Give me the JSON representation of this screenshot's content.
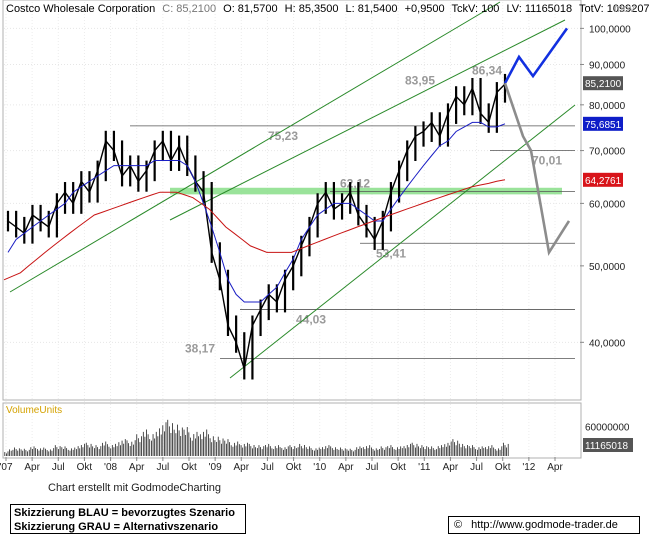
{
  "chart_data": {
    "type": "line",
    "header": {
      "name": "Costco Wholesale Corporation",
      "close": "C: 85,2100",
      "open": "O: 81,5700",
      "high": "H: 85,3500",
      "low": "L: 81,5400",
      "change": "+0,9500",
      "tckv": "TckV: 100",
      "lv": "LV: 11165018",
      "totv": "TotV: 1099207",
      "cut": "mov"
    },
    "scale": "log",
    "ylim": [
      34,
      108
    ],
    "x_ticks": [
      "'07",
      "Apr",
      "Jul",
      "Okt",
      "'08",
      "Apr",
      "Jul",
      "Okt",
      "'09",
      "Apr",
      "Jul",
      "Okt",
      "'10",
      "Apr",
      "Jul",
      "Okt",
      "'11",
      "Apr",
      "Jul",
      "Okt",
      "'12",
      "Apr"
    ],
    "y_ticks": [
      {
        "value": 100,
        "label": "100,0000"
      },
      {
        "value": 90,
        "label": "90,0000"
      },
      {
        "value": 80,
        "label": "80,0000"
      },
      {
        "value": 70,
        "label": "70,0000"
      },
      {
        "value": 60,
        "label": "60,0000"
      },
      {
        "value": 50,
        "label": "50,0000"
      },
      {
        "value": 40,
        "label": "40,0000"
      }
    ],
    "series": [
      {
        "values": [
          57,
          56,
          55,
          58,
          57,
          56,
          60,
          62,
          60,
          64,
          62,
          66,
          72,
          70,
          65,
          67,
          64,
          66,
          70,
          72,
          68,
          71,
          67,
          64,
          62,
          52,
          48,
          42,
          40,
          37,
          42,
          44,
          46,
          45,
          48,
          50,
          53,
          56,
          60,
          62,
          59,
          60,
          62,
          58,
          56,
          54,
          57,
          62,
          66,
          70,
          73,
          74,
          76,
          73,
          78,
          82,
          80,
          84,
          78,
          76,
          83,
          85
        ]
      },
      {
        "values": [
          52,
          54,
          55,
          56,
          57,
          58,
          59,
          60,
          62,
          63,
          64,
          65,
          66,
          67,
          67,
          67,
          67,
          67,
          68,
          68,
          68,
          68,
          67,
          64,
          60,
          56,
          52,
          48,
          46,
          45,
          45,
          45,
          46,
          47,
          49,
          51,
          54,
          56,
          58,
          59,
          60,
          60,
          60,
          59,
          58,
          57,
          57,
          59,
          61,
          63,
          65,
          67,
          69,
          71,
          72,
          74,
          75,
          76,
          76,
          75,
          75,
          75.69
        ]
      },
      {
        "values": [
          48,
          48.5,
          49,
          50,
          51,
          52,
          53,
          54,
          55,
          56,
          57,
          58,
          58.5,
          59,
          59.5,
          60,
          60.5,
          61,
          61.5,
          62,
          62,
          62,
          61.5,
          61,
          60,
          59,
          57.5,
          56,
          55,
          54,
          53,
          52.5,
          52,
          52,
          52,
          52,
          52.5,
          53,
          53.5,
          54,
          54.5,
          55,
          55.5,
          56,
          56.5,
          57,
          57.5,
          58,
          58.5,
          59,
          59.5,
          60,
          60.5,
          61,
          61.5,
          62,
          62.5,
          63,
          63.3,
          63.6,
          64,
          64.28
        ]
      },
      {
        "values": [
          6,
          7,
          6,
          8,
          7,
          6,
          9,
          8,
          7,
          10,
          11,
          9,
          12,
          10,
          14,
          13,
          18,
          22,
          20,
          28,
          30,
          26,
          24,
          20,
          22,
          18,
          16,
          14,
          12,
          11,
          10,
          9,
          10,
          9,
          8,
          9,
          10,
          8,
          7,
          9,
          8,
          7,
          6,
          8,
          9,
          7,
          8,
          9,
          8,
          10,
          11,
          9,
          8,
          9,
          12,
          14,
          10,
          9,
          8,
          9,
          7,
          11
        ]
      }
    ],
    "price_labels": [
      {
        "value": 85.21,
        "label": "85,2100",
        "color": "#555555"
      },
      {
        "value": 75.6851,
        "label": "75,6851",
        "color": "#0f1ec8"
      },
      {
        "value": 64.2761,
        "label": "64,2761",
        "color": "#d8141a"
      }
    ],
    "levels": [
      {
        "value": 86.34,
        "label": "86,34"
      },
      {
        "value": 83.95,
        "label": "83,95"
      },
      {
        "value": 75.23,
        "label": "75,23"
      },
      {
        "value": 70.01,
        "label": "70,01"
      },
      {
        "value": 62.12,
        "label": "62,12"
      },
      {
        "value": 53.41,
        "label": "53,41"
      },
      {
        "value": 44.03,
        "label": "44,03"
      },
      {
        "value": 38.17,
        "label": "38,17"
      }
    ],
    "support_zone": [
      61.6,
      62.8
    ],
    "volume": {
      "title": "VolumeUnits",
      "ticks": [
        {
          "value": 60000000,
          "label": "60000000"
        }
      ],
      "last_label": "11165018"
    },
    "scenario_blue": [
      85.21,
      92,
      87,
      100
    ],
    "scenario_grey": [
      85.21,
      73,
      70.01,
      52,
      57
    ],
    "colors": {
      "candles": "#000000",
      "sma_short": "#1a1ec4",
      "sma_long": "#c81414",
      "channel": "#2a8a2a",
      "zone": "#8fe08f",
      "blue_scenario": "#1230e0",
      "grey_scenario": "#8c8c8c"
    }
  },
  "credit": "Chart erstellt mit GodmodeCharting",
  "legend": {
    "blue": "Skizzierung BLAU = bevorzugtes Szenario",
    "grey": "Skizzierung GRAU = Alternativszenario"
  },
  "footer": {
    "copyright": "©",
    "url": "http://www.godmode-trader.de"
  }
}
